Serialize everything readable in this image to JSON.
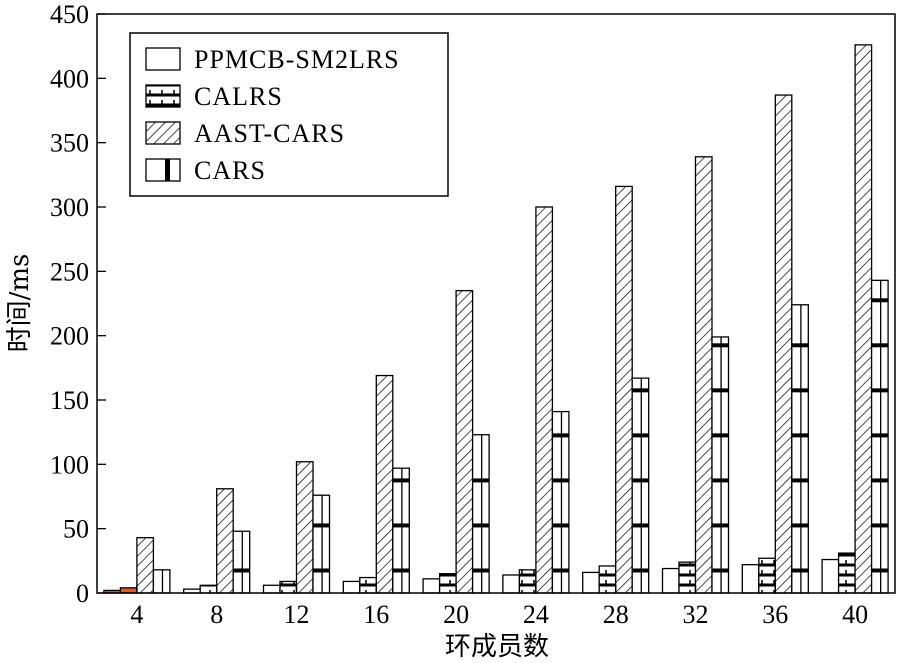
{
  "chart_data": {
    "type": "bar",
    "categories": [
      "4",
      "8",
      "12",
      "16",
      "20",
      "24",
      "28",
      "32",
      "36",
      "40"
    ],
    "series": [
      {
        "name": "PPMCB-SM2LRS",
        "values": [
          2,
          3,
          6,
          9,
          11,
          14,
          16,
          19,
          22,
          26
        ],
        "pattern": "plain"
      },
      {
        "name": "CALRS",
        "values": [
          4,
          6,
          9,
          12,
          15,
          18,
          21,
          24,
          27,
          31
        ],
        "pattern": "brick"
      },
      {
        "name": "AAST-CARS",
        "values": [
          43,
          81,
          102,
          169,
          235,
          300,
          316,
          339,
          387,
          426
        ],
        "pattern": "hatch"
      },
      {
        "name": "CARS",
        "values": [
          18,
          48,
          76,
          97,
          123,
          141,
          167,
          199,
          224,
          243
        ],
        "pattern": "bands"
      }
    ],
    "xlabel": "环成员数",
    "ylabel": "时间/ms",
    "ylim": [
      0,
      450
    ],
    "yticks": [
      "0",
      "50",
      "100",
      "150",
      "200",
      "250",
      "300",
      "350",
      "400",
      "450"
    ],
    "legend_position": "top-left",
    "grid": false,
    "colors": {
      "stroke": "#000000",
      "fill": "#ffffff",
      "highlight": "#e05a2a"
    }
  }
}
